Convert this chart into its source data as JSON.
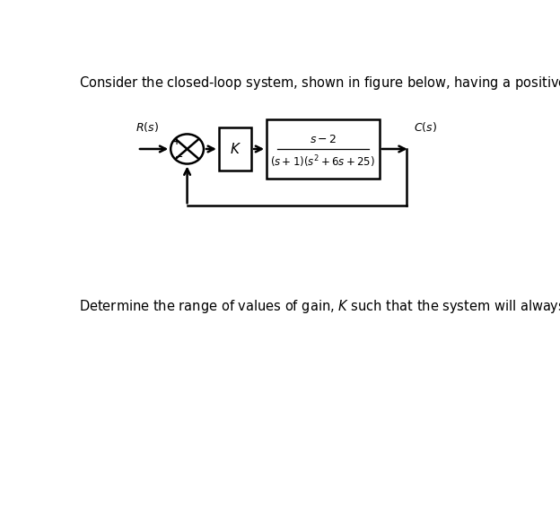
{
  "title_text": "Consider the closed-loop system, shown in figure below, having a positive gain, $K$.",
  "bottom_text": "Determine the range of values of gain, $K$ such that the system will always remain stable.",
  "Rs_label": "$R(s)$",
  "Cs_label": "$C(s)$",
  "K_label": "$K$",
  "tf_numerator": "$s-2$",
  "tf_denominator": "$(s+1)(s^2+6s+25)$",
  "plus_label": "+",
  "minus_label": "−",
  "bg_color": "#ffffff",
  "line_color": "#000000",
  "text_color": "#000000",
  "title_fontsize": 10.5,
  "label_fontsize": 9,
  "block_fontsize": 10,
  "tf_num_fontsize": 9,
  "tf_den_fontsize": 8.5
}
